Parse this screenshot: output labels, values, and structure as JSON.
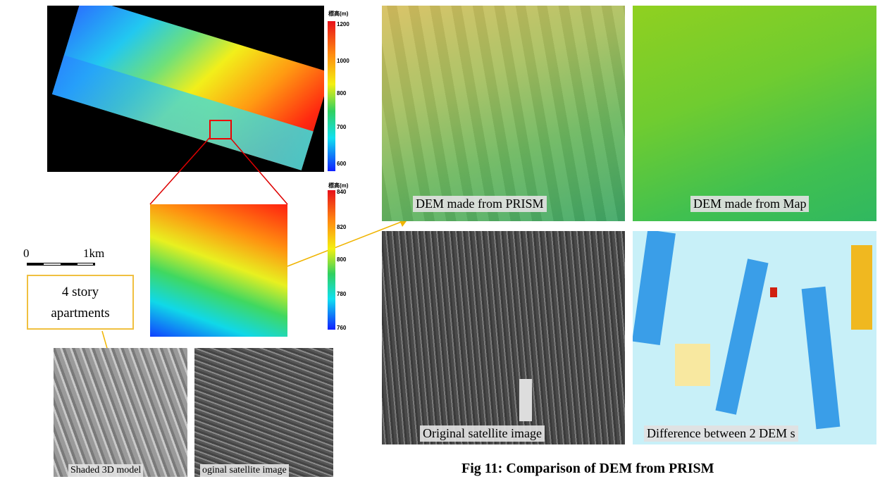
{
  "figure": {
    "dem_colorbar": {
      "title": "標高(m)",
      "labels": [
        "1200",
        "1000",
        "800",
        "700",
        "600"
      ]
    },
    "zoom_colorbar": {
      "title": "標高(m)",
      "labels": [
        "840",
        "820",
        "800",
        "780",
        "760"
      ]
    },
    "scale": {
      "start": "0",
      "end": "1km"
    },
    "callout": [
      "4 story",
      "apartments"
    ],
    "panels": [
      "Shaded 3D model",
      "oginal satellite image",
      "DEM made from PRISM",
      "DEM made from Map",
      "Original satellite image",
      "Difference between 2 DEM s"
    ],
    "caption": "Fig 11: Comparison of DEM from PRISM"
  }
}
